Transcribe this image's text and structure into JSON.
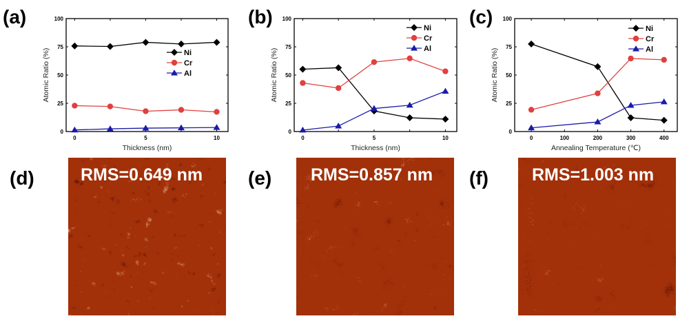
{
  "figure": {
    "panels": [
      "(a)",
      "(b)",
      "(c)",
      "(d)",
      "(e)",
      "(f)"
    ]
  },
  "colors": {
    "Ni": "#000000",
    "Cr": "#e0403f",
    "Al": "#1a1aa8",
    "afm_dark": "#4a0a00",
    "afm_mid": "#a3300a",
    "afm_light": "#f5c89a"
  },
  "chart_data": [
    {
      "panel": "(a)",
      "type": "line",
      "xlabel": "Thickness (nm)",
      "ylabel": "Atomic Ratio (%)",
      "xlim": [
        -0.6,
        10.8
      ],
      "ylim": [
        0,
        100
      ],
      "xticks": [
        0,
        2.5,
        5,
        7.5,
        10
      ],
      "xtick_labels": [
        "0",
        "",
        "5",
        "",
        "10"
      ],
      "yticks": [
        0,
        25,
        50,
        75,
        100
      ],
      "ytick_labels": [
        "0",
        "25",
        "50",
        "75",
        "100"
      ],
      "legend": "right-center",
      "x": [
        0,
        2.5,
        5,
        7.5,
        10
      ],
      "series": [
        {
          "name": "Ni",
          "marker": "diamond",
          "values": [
            75.8,
            75.3,
            79.0,
            77.5,
            79.0
          ]
        },
        {
          "name": "Cr",
          "marker": "circle",
          "values": [
            22.9,
            22.2,
            18.0,
            19.2,
            17.4
          ]
        },
        {
          "name": "Al",
          "marker": "triangle",
          "values": [
            1.4,
            2.4,
            3.0,
            3.3,
            3.6
          ]
        }
      ]
    },
    {
      "panel": "(b)",
      "type": "line",
      "xlabel": "Thickness (nm)",
      "ylabel": "Atomic Ratio (%)",
      "xlim": [
        -0.6,
        10.8
      ],
      "ylim": [
        0,
        100
      ],
      "xticks": [
        0,
        2.5,
        5,
        7.5,
        10
      ],
      "xtick_labels": [
        "0",
        "",
        "5",
        "",
        "10"
      ],
      "yticks": [
        0,
        25,
        50,
        75,
        100
      ],
      "ytick_labels": [
        "0",
        "25",
        "50",
        "75",
        "100"
      ],
      "legend": "top-right",
      "x": [
        0,
        2.5,
        5,
        7.5,
        10
      ],
      "series": [
        {
          "name": "Ni",
          "marker": "diamond",
          "values": [
            55.2,
            56.5,
            18.2,
            12.2,
            11.0
          ]
        },
        {
          "name": "Cr",
          "marker": "circle",
          "values": [
            43.0,
            38.5,
            61.5,
            64.8,
            53.3
          ]
        },
        {
          "name": "Al",
          "marker": "triangle",
          "values": [
            1.3,
            4.9,
            20.4,
            23.3,
            35.7
          ]
        }
      ]
    },
    {
      "panel": "(c)",
      "type": "line",
      "xlabel": "Annealing Temperature (℃)",
      "ylabel": "Atomic Ratio (%)",
      "xlim": [
        -50,
        440
      ],
      "ylim": [
        0,
        100
      ],
      "xticks": [
        0,
        100,
        200,
        300,
        400
      ],
      "xtick_labels": [
        "0",
        "100",
        "200",
        "300",
        "400"
      ],
      "yticks": [
        0,
        25,
        50,
        75,
        100
      ],
      "ytick_labels": [
        "0",
        "25",
        "50",
        "75",
        "100"
      ],
      "legend": "top-right",
      "x": [
        0,
        200,
        300,
        400
      ],
      "series": [
        {
          "name": "Ni",
          "marker": "diamond",
          "values": [
            77.5,
            57.5,
            12.2,
            10.0
          ]
        },
        {
          "name": "Cr",
          "marker": "circle",
          "values": [
            19.3,
            33.8,
            64.7,
            63.5
          ]
        },
        {
          "name": "Al",
          "marker": "triangle",
          "values": [
            3.3,
            8.5,
            23.2,
            26.3
          ]
        }
      ]
    }
  ],
  "afm_images": [
    {
      "panel": "(d)",
      "label": "RMS=0.649 nm",
      "rms_nm": 0.649
    },
    {
      "panel": "(e)",
      "label": "RMS=0.857 nm",
      "rms_nm": 0.857
    },
    {
      "panel": "(f)",
      "label": "RMS=1.003 nm",
      "rms_nm": 1.003
    }
  ]
}
